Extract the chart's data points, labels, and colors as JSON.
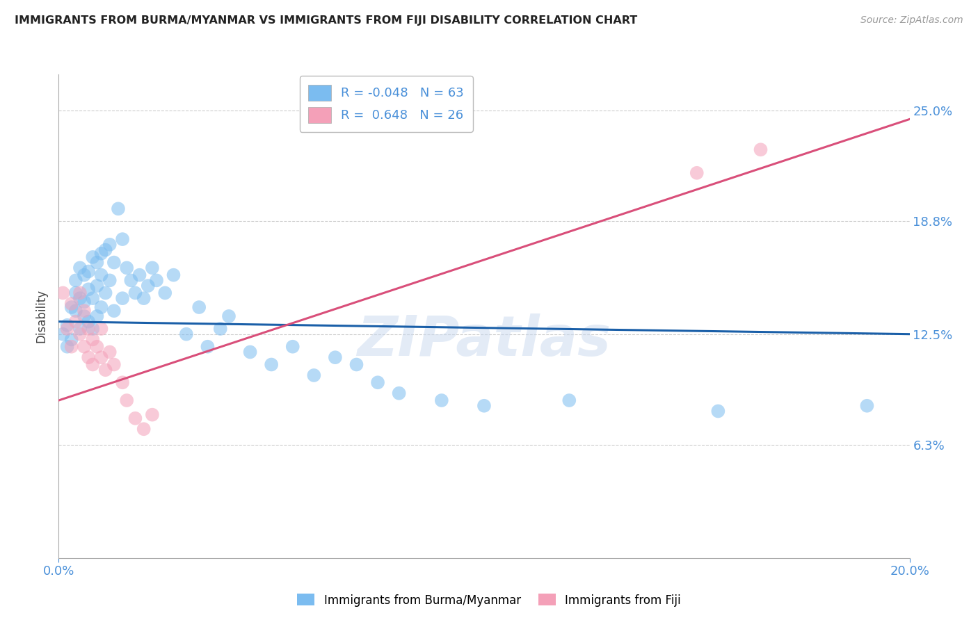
{
  "title": "IMMIGRANTS FROM BURMA/MYANMAR VS IMMIGRANTS FROM FIJI DISABILITY CORRELATION CHART",
  "source": "Source: ZipAtlas.com",
  "ylabel": "Disability",
  "ytick_labels": [
    "25.0%",
    "18.8%",
    "12.5%",
    "6.3%"
  ],
  "ytick_values": [
    0.25,
    0.188,
    0.125,
    0.063
  ],
  "xmin": 0.0,
  "xmax": 0.2,
  "ymin": 0.0,
  "ymax": 0.27,
  "legend_blue_R": "-0.048",
  "legend_blue_N": "63",
  "legend_pink_R": "0.648",
  "legend_pink_N": "26",
  "legend_label_blue": "Immigrants from Burma/Myanmar",
  "legend_label_pink": "Immigrants from Fiji",
  "color_blue": "#7bbcf0",
  "color_pink": "#f4a0b8",
  "color_line_blue": "#1a5fa8",
  "color_line_pink": "#d94f7a",
  "color_axis_labels": "#4a90d9",
  "watermark": "ZIPatlas",
  "blue_x": [
    0.001,
    0.002,
    0.002,
    0.003,
    0.003,
    0.004,
    0.004,
    0.004,
    0.005,
    0.005,
    0.005,
    0.006,
    0.006,
    0.006,
    0.007,
    0.007,
    0.007,
    0.008,
    0.008,
    0.008,
    0.009,
    0.009,
    0.009,
    0.01,
    0.01,
    0.01,
    0.011,
    0.011,
    0.012,
    0.012,
    0.013,
    0.013,
    0.014,
    0.015,
    0.015,
    0.016,
    0.017,
    0.018,
    0.019,
    0.02,
    0.021,
    0.022,
    0.023,
    0.025,
    0.027,
    0.03,
    0.033,
    0.035,
    0.038,
    0.04,
    0.045,
    0.05,
    0.055,
    0.06,
    0.065,
    0.07,
    0.075,
    0.08,
    0.09,
    0.1,
    0.12,
    0.155,
    0.19
  ],
  "blue_y": [
    0.125,
    0.13,
    0.118,
    0.14,
    0.122,
    0.155,
    0.148,
    0.138,
    0.162,
    0.145,
    0.128,
    0.158,
    0.143,
    0.135,
    0.16,
    0.15,
    0.132,
    0.168,
    0.145,
    0.128,
    0.165,
    0.152,
    0.135,
    0.17,
    0.158,
    0.14,
    0.172,
    0.148,
    0.175,
    0.155,
    0.165,
    0.138,
    0.195,
    0.178,
    0.145,
    0.162,
    0.155,
    0.148,
    0.158,
    0.145,
    0.152,
    0.162,
    0.155,
    0.148,
    0.158,
    0.125,
    0.14,
    0.118,
    0.128,
    0.135,
    0.115,
    0.108,
    0.118,
    0.102,
    0.112,
    0.108,
    0.098,
    0.092,
    0.088,
    0.085,
    0.088,
    0.082,
    0.085
  ],
  "pink_x": [
    0.001,
    0.002,
    0.003,
    0.003,
    0.004,
    0.005,
    0.005,
    0.006,
    0.006,
    0.007,
    0.007,
    0.008,
    0.008,
    0.009,
    0.01,
    0.01,
    0.011,
    0.012,
    0.013,
    0.015,
    0.016,
    0.018,
    0.02,
    0.022,
    0.15,
    0.165
  ],
  "pink_y": [
    0.148,
    0.128,
    0.142,
    0.118,
    0.132,
    0.148,
    0.125,
    0.138,
    0.118,
    0.128,
    0.112,
    0.122,
    0.108,
    0.118,
    0.128,
    0.112,
    0.105,
    0.115,
    0.108,
    0.098,
    0.088,
    0.078,
    0.072,
    0.08,
    0.215,
    0.228
  ],
  "blue_line_x0": 0.0,
  "blue_line_x1": 0.2,
  "blue_line_y0": 0.132,
  "blue_line_y1": 0.125,
  "pink_line_x0": 0.0,
  "pink_line_x1": 0.2,
  "pink_line_y0": 0.088,
  "pink_line_y1": 0.245
}
